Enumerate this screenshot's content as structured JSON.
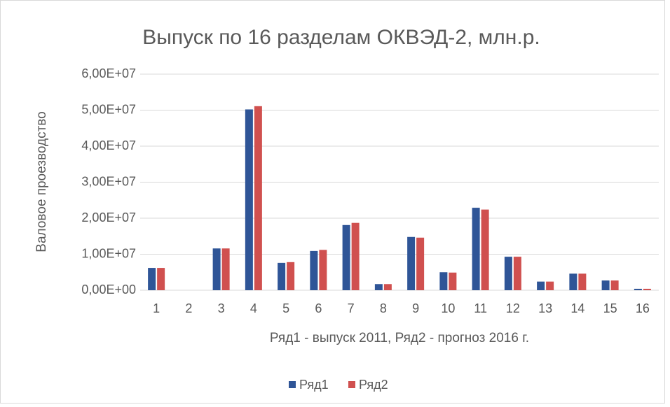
{
  "chart_data": {
    "type": "bar",
    "title": "Выпуск по 16 разделам ОКВЭД-2, млн.р.",
    "xlabel": "Ряд1 - выпуск 2011, Ряд2 - прогноз 2016 г.",
    "ylabel": "Валовое проезводство",
    "categories": [
      "1",
      "2",
      "3",
      "4",
      "5",
      "6",
      "7",
      "8",
      "9",
      "10",
      "11",
      "12",
      "13",
      "14",
      "15",
      "16"
    ],
    "series": [
      {
        "name": "Ряд1",
        "color": "#2f5597",
        "values": [
          6200000,
          0,
          11600000,
          50200000,
          7600000,
          10900000,
          18100000,
          1700000,
          14800000,
          5000000,
          22900000,
          9300000,
          2400000,
          4600000,
          2700000,
          400000
        ]
      },
      {
        "name": "Ряд2",
        "color": "#d0504f",
        "values": [
          6200000,
          0,
          11600000,
          51100000,
          7800000,
          11200000,
          18700000,
          1700000,
          14600000,
          4900000,
          22400000,
          9300000,
          2400000,
          4600000,
          2700000,
          400000
        ]
      }
    ],
    "ylim": [
      0,
      60000000
    ],
    "yticks": [
      {
        "value": 0,
        "label": "0,00E+00"
      },
      {
        "value": 10000000,
        "label": "1,00E+07"
      },
      {
        "value": 20000000,
        "label": "2,00E+07"
      },
      {
        "value": 30000000,
        "label": "3,00E+07"
      },
      {
        "value": 40000000,
        "label": "4,00E+07"
      },
      {
        "value": 50000000,
        "label": "5,00E+07"
      },
      {
        "value": 60000000,
        "label": "6,00E+07"
      }
    ],
    "grid": true,
    "legend": "bottom"
  }
}
